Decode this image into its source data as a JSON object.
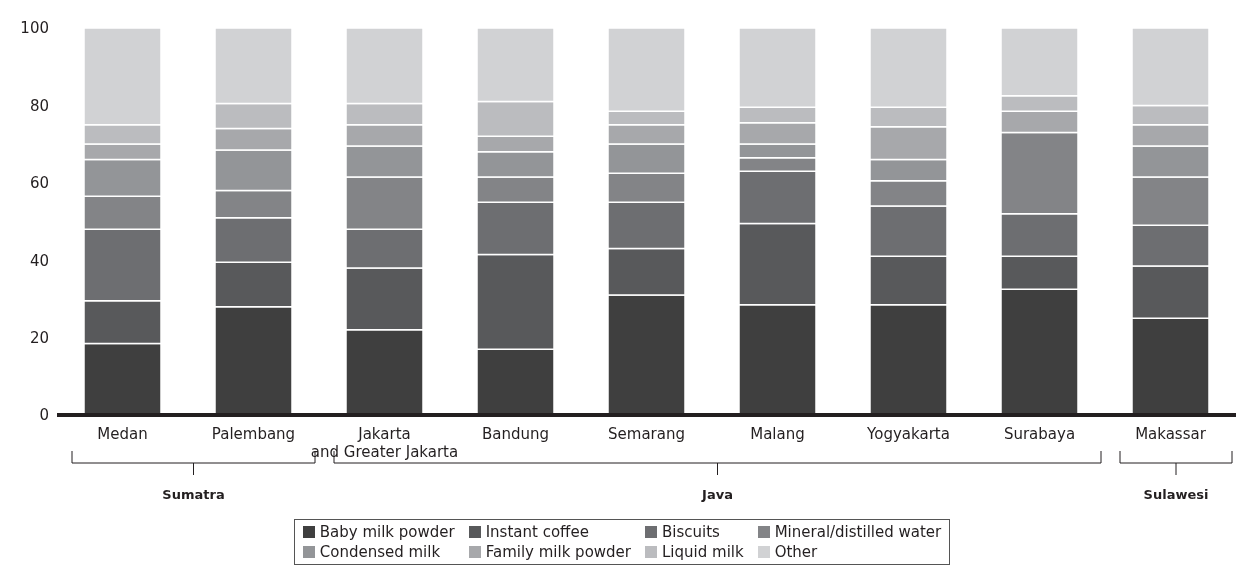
{
  "chart_data": {
    "type": "bar",
    "stacked": true,
    "legend": "bottom",
    "categories": [
      "Medan",
      "Palembang",
      "Jakarta\nand Greater Jakarta",
      "Bandung",
      "Semarang",
      "Malang",
      "Yogyakarta",
      "Surabaya",
      "Makassar"
    ],
    "series": [
      {
        "name": "Baby milk powder",
        "color": "#3f3f3f",
        "values": [
          18.5,
          28,
          22,
          17,
          31,
          28.5,
          28.5,
          32.5,
          25
        ]
      },
      {
        "name": "Instant coffee",
        "color": "#58595b",
        "values": [
          11,
          11.5,
          16,
          24.5,
          12,
          21,
          12.5,
          8.5,
          13.5
        ]
      },
      {
        "name": "Biscuits",
        "color": "#6d6e71",
        "values": [
          18.5,
          11.5,
          10,
          13.5,
          12,
          13.5,
          13,
          11,
          10.5
        ]
      },
      {
        "name": "Mineral/distilled water",
        "color": "#838487",
        "values": [
          8.5,
          7,
          13.5,
          6.5,
          7.5,
          3.5,
          6.5,
          21,
          12.5
        ]
      },
      {
        "name": "Condensed milk",
        "color": "#939598",
        "values": [
          9.5,
          10.5,
          8,
          6.5,
          7.5,
          3.5,
          5.5,
          0,
          8
        ]
      },
      {
        "name": "Family milk powder",
        "color": "#a7a8ab",
        "values": [
          4,
          5.5,
          5.5,
          4,
          5,
          5.5,
          8.5,
          5.5,
          5.5
        ]
      },
      {
        "name": "Liquid milk",
        "color": "#bbbcbf",
        "values": [
          5,
          6.5,
          5.5,
          9,
          3.5,
          4,
          5,
          4,
          5
        ]
      },
      {
        "name": "Other",
        "color": "#d1d2d4",
        "values": [
          25,
          19.5,
          19.5,
          19,
          21.5,
          20.5,
          20.5,
          17.5,
          20
        ]
      }
    ],
    "ylim": [
      0,
      100
    ],
    "yticks": [
      0,
      20,
      40,
      60,
      80,
      100
    ],
    "annotations": [
      "Sumatra",
      "Java",
      "Sulawesi"
    ]
  }
}
